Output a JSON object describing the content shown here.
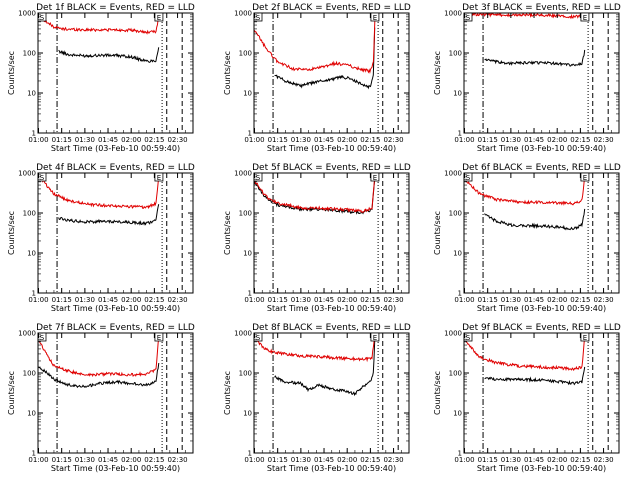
{
  "figure": {
    "background": "#ffffff",
    "series_colors": {
      "Events": "#000000",
      "LLD": "#e00000"
    }
  },
  "chart_data": [
    {
      "type": "line",
      "title": "Det 1f BLACK = Events, RED = LLD",
      "xlabel": "Start Time (03-Feb-10 00:59:40)",
      "ylabel": "Counts/sec",
      "x_tick_labels": [
        "01:00",
        "01:15",
        "01:30",
        "01:45",
        "02:00",
        "02:15",
        "02:30"
      ],
      "y_tick_labels": [
        "1",
        "10",
        "100",
        "1000"
      ],
      "yscale": "log",
      "ylim": [
        1,
        1000
      ],
      "xlim": [
        "00:59:40",
        "02:40:00"
      ],
      "markers": [
        "S",
        "E"
      ],
      "vlines": [
        {
          "time": "01:12",
          "style": "dashdot"
        },
        {
          "time": "02:20",
          "style": "dotted"
        },
        {
          "time": "02:23",
          "style": "dashed"
        },
        {
          "time": "02:33",
          "style": "dashed"
        }
      ],
      "series": [
        {
          "name": "Events",
          "color": "#000000",
          "x": [
            "01:13",
            "01:20",
            "01:30",
            "01:40",
            "01:50",
            "02:00",
            "02:05",
            "02:10",
            "02:16",
            "02:18"
          ],
          "values": [
            110,
            90,
            85,
            88,
            87,
            80,
            70,
            62,
            65,
            150
          ]
        },
        {
          "name": "LLD",
          "color": "#e00000",
          "x": [
            "01:00",
            "01:05",
            "01:10",
            "01:15",
            "01:30",
            "01:45",
            "02:00",
            "02:10",
            "02:16",
            "02:18"
          ],
          "values": [
            900,
            600,
            450,
            400,
            380,
            380,
            370,
            330,
            340,
            900
          ]
        }
      ]
    },
    {
      "type": "line",
      "title": "Det 2f BLACK = Events, RED = LLD",
      "xlabel": "Start Time (03-Feb-10 00:59:40)",
      "ylabel": "Counts/sec",
      "x_tick_labels": [
        "01:00",
        "01:15",
        "01:30",
        "01:45",
        "02:00",
        "02:15",
        "02:30"
      ],
      "y_tick_labels": [
        "1",
        "10",
        "100",
        "1000"
      ],
      "yscale": "log",
      "ylim": [
        1,
        1000
      ],
      "xlim": [
        "00:59:40",
        "02:40:00"
      ],
      "markers": [
        "S",
        "E"
      ],
      "vlines": [
        {
          "time": "01:12",
          "style": "dashdot"
        },
        {
          "time": "02:20",
          "style": "dotted"
        },
        {
          "time": "02:23",
          "style": "dashed"
        },
        {
          "time": "02:33",
          "style": "dashed"
        }
      ],
      "series": [
        {
          "name": "Events",
          "color": "#000000",
          "x": [
            "01:13",
            "01:20",
            "01:30",
            "01:40",
            "01:50",
            "01:55",
            "02:00",
            "02:05",
            "02:10",
            "02:15",
            "02:17",
            "02:18"
          ],
          "values": [
            28,
            20,
            15,
            19,
            22,
            25,
            24,
            20,
            16,
            14,
            30,
            900
          ]
        },
        {
          "name": "LLD",
          "color": "#e00000",
          "x": [
            "01:00",
            "01:03",
            "01:06",
            "01:10",
            "01:15",
            "01:25",
            "01:35",
            "01:45",
            "01:52",
            "02:00",
            "02:08",
            "02:15",
            "02:17",
            "02:18"
          ],
          "values": [
            350,
            250,
            160,
            100,
            60,
            40,
            38,
            45,
            55,
            50,
            40,
            35,
            60,
            1000
          ]
        }
      ]
    },
    {
      "type": "line",
      "title": "Det 3f BLACK = Events, RED = LLD",
      "xlabel": "Start Time (03-Feb-10 00:59:40)",
      "ylabel": "Counts/sec",
      "x_tick_labels": [
        "01:00",
        "01:15",
        "01:30",
        "01:45",
        "02:00",
        "02:15",
        "02:30"
      ],
      "y_tick_labels": [
        "1",
        "10",
        "100",
        "1000"
      ],
      "yscale": "log",
      "ylim": [
        1,
        1000
      ],
      "xlim": [
        "00:59:40",
        "02:40:00"
      ],
      "markers": [
        "S",
        "E"
      ],
      "vlines": [
        {
          "time": "01:12",
          "style": "dashdot"
        },
        {
          "time": "02:20",
          "style": "dotted"
        },
        {
          "time": "02:23",
          "style": "dashed"
        },
        {
          "time": "02:33",
          "style": "dashed"
        }
      ],
      "series": [
        {
          "name": "Events",
          "color": "#000000",
          "x": [
            "01:13",
            "01:20",
            "01:30",
            "01:45",
            "02:00",
            "02:10",
            "02:16",
            "02:18"
          ],
          "values": [
            70,
            60,
            55,
            58,
            55,
            50,
            52,
            120
          ]
        },
        {
          "name": "LLD",
          "color": "#e00000",
          "x": [
            "01:00",
            "01:15",
            "01:30",
            "01:45",
            "02:00",
            "02:10",
            "02:16",
            "02:18"
          ],
          "values": [
            950,
            900,
            880,
            900,
            850,
            800,
            820,
            1000
          ]
        }
      ]
    },
    {
      "type": "line",
      "title": "Det 4f BLACK = Events, RED = LLD",
      "xlabel": "Start Time (03-Feb-10 00:59:40)",
      "ylabel": "Counts/sec",
      "x_tick_labels": [
        "01:00",
        "01:15",
        "01:30",
        "01:45",
        "02:00",
        "02:15",
        "02:30"
      ],
      "y_tick_labels": [
        "1",
        "10",
        "100",
        "1000"
      ],
      "yscale": "log",
      "ylim": [
        1,
        1000
      ],
      "xlim": [
        "00:59:40",
        "02:40:00"
      ],
      "markers": [
        "S",
        "E"
      ],
      "vlines": [
        {
          "time": "01:12",
          "style": "dashdot"
        },
        {
          "time": "02:20",
          "style": "dotted"
        },
        {
          "time": "02:23",
          "style": "dashed"
        },
        {
          "time": "02:33",
          "style": "dashed"
        }
      ],
      "series": [
        {
          "name": "Events",
          "color": "#000000",
          "x": [
            "01:13",
            "01:20",
            "01:30",
            "01:45",
            "02:00",
            "02:10",
            "02:16",
            "02:18"
          ],
          "values": [
            75,
            65,
            60,
            62,
            58,
            55,
            65,
            200
          ]
        },
        {
          "name": "LLD",
          "color": "#e00000",
          "x": [
            "01:00",
            "01:05",
            "01:10",
            "01:20",
            "01:35",
            "01:50",
            "02:00",
            "02:10",
            "02:16",
            "02:18"
          ],
          "values": [
            900,
            500,
            300,
            200,
            160,
            150,
            145,
            140,
            170,
            1000
          ]
        }
      ]
    },
    {
      "type": "line",
      "title": "Det 5f BLACK = Events, RED = LLD",
      "xlabel": "Start Time (03-Feb-10 00:59:40)",
      "ylabel": "Counts/sec",
      "x_tick_labels": [
        "01:00",
        "01:15",
        "01:30",
        "01:45",
        "02:00",
        "02:15",
        "02:30"
      ],
      "y_tick_labels": [
        "1",
        "10",
        "100",
        "1000"
      ],
      "yscale": "log",
      "ylim": [
        1,
        1000
      ],
      "xlim": [
        "00:59:40",
        "02:40:00"
      ],
      "markers": [
        "S",
        "E"
      ],
      "vlines": [
        {
          "time": "01:12",
          "style": "dashdot"
        },
        {
          "time": "02:20",
          "style": "dotted"
        },
        {
          "time": "02:23",
          "style": "dashed"
        },
        {
          "time": "02:33",
          "style": "dashed"
        }
      ],
      "series": [
        {
          "name": "Events",
          "color": "#000000",
          "x": [
            "01:00",
            "01:04",
            "01:08",
            "01:15",
            "01:30",
            "01:45",
            "02:00",
            "02:10",
            "02:16",
            "02:18"
          ],
          "values": [
            600,
            350,
            230,
            160,
            125,
            120,
            110,
            100,
            120,
            800
          ]
        },
        {
          "name": "LLD",
          "color": "#e00000",
          "x": [
            "01:00",
            "01:04",
            "01:08",
            "01:15",
            "01:30",
            "01:45",
            "02:00",
            "02:10",
            "02:16",
            "02:18"
          ],
          "values": [
            650,
            380,
            250,
            175,
            135,
            130,
            120,
            110,
            130,
            1000
          ]
        }
      ]
    },
    {
      "type": "line",
      "title": "Det 6f BLACK = Events, RED = LLD",
      "xlabel": "Start Time (03-Feb-10 00:59:40)",
      "ylabel": "Counts/sec",
      "x_tick_labels": [
        "01:00",
        "01:15",
        "01:30",
        "01:45",
        "02:00",
        "02:15",
        "02:30"
      ],
      "y_tick_labels": [
        "1",
        "10",
        "100",
        "1000"
      ],
      "yscale": "log",
      "ylim": [
        1,
        1000
      ],
      "xlim": [
        "00:59:40",
        "02:40:00"
      ],
      "markers": [
        "S",
        "E"
      ],
      "vlines": [
        {
          "time": "01:12",
          "style": "dashdot"
        },
        {
          "time": "02:20",
          "style": "dotted"
        },
        {
          "time": "02:23",
          "style": "dashed"
        },
        {
          "time": "02:33",
          "style": "dashed"
        }
      ],
      "series": [
        {
          "name": "Events",
          "color": "#000000",
          "x": [
            "01:13",
            "01:20",
            "01:30",
            "01:45",
            "02:00",
            "02:10",
            "02:16",
            "02:18"
          ],
          "values": [
            90,
            65,
            50,
            48,
            45,
            40,
            50,
            130
          ]
        },
        {
          "name": "LLD",
          "color": "#e00000",
          "x": [
            "01:00",
            "01:05",
            "01:10",
            "01:20",
            "01:35",
            "01:50",
            "02:00",
            "02:10",
            "02:16",
            "02:18"
          ],
          "values": [
            700,
            450,
            300,
            220,
            190,
            185,
            180,
            170,
            200,
            1000
          ]
        }
      ]
    },
    {
      "type": "line",
      "title": "Det 7f BLACK = Events, RED = LLD",
      "xlabel": "Start Time (03-Feb-10 00:59:40)",
      "ylabel": "Counts/sec",
      "x_tick_labels": [
        "01:00",
        "01:15",
        "01:30",
        "01:45",
        "02:00",
        "02:15",
        "02:30"
      ],
      "y_tick_labels": [
        "1",
        "10",
        "100",
        "1000"
      ],
      "yscale": "log",
      "ylim": [
        1,
        1000
      ],
      "xlim": [
        "00:59:40",
        "02:40:00"
      ],
      "markers": [
        "S",
        "E"
      ],
      "vlines": [
        {
          "time": "01:12",
          "style": "dashdot"
        },
        {
          "time": "02:20",
          "style": "dotted"
        },
        {
          "time": "02:23",
          "style": "dashed"
        },
        {
          "time": "02:33",
          "style": "dashed"
        }
      ],
      "series": [
        {
          "name": "Events",
          "color": "#000000",
          "x": [
            "01:00",
            "01:10",
            "01:20",
            "01:30",
            "01:40",
            "01:50",
            "02:00",
            "02:10",
            "02:16",
            "02:18"
          ],
          "values": [
            150,
            70,
            50,
            45,
            55,
            60,
            55,
            50,
            60,
            200
          ]
        },
        {
          "name": "LLD",
          "color": "#e00000",
          "x": [
            "01:00",
            "01:05",
            "01:10",
            "01:20",
            "01:30",
            "01:45",
            "02:00",
            "02:10",
            "02:16",
            "02:18"
          ],
          "values": [
            700,
            300,
            150,
            110,
            90,
            95,
            90,
            95,
            120,
            1000
          ]
        }
      ]
    },
    {
      "type": "line",
      "title": "Det 8f BLACK = Events, RED = LLD",
      "xlabel": "Start Time (03-Feb-10 00:59:40)",
      "ylabel": "Counts/sec",
      "x_tick_labels": [
        "01:00",
        "01:15",
        "01:30",
        "01:45",
        "02:00",
        "02:15",
        "02:30"
      ],
      "y_tick_labels": [
        "1",
        "10",
        "100",
        "1000"
      ],
      "yscale": "log",
      "ylim": [
        1,
        1000
      ],
      "xlim": [
        "00:59:40",
        "02:40:00"
      ],
      "markers": [
        "S",
        "E"
      ],
      "vlines": [
        {
          "time": "01:12",
          "style": "dashdot"
        },
        {
          "time": "02:20",
          "style": "dotted"
        },
        {
          "time": "02:23",
          "style": "dashed"
        },
        {
          "time": "02:33",
          "style": "dashed"
        }
      ],
      "series": [
        {
          "name": "Events",
          "color": "#000000",
          "x": [
            "01:13",
            "01:20",
            "01:30",
            "01:35",
            "01:42",
            "01:50",
            "02:00",
            "02:05",
            "02:10",
            "02:15",
            "02:17",
            "02:18"
          ],
          "values": [
            80,
            60,
            55,
            38,
            50,
            40,
            35,
            30,
            45,
            60,
            100,
            1000
          ]
        },
        {
          "name": "LLD",
          "color": "#e00000",
          "x": [
            "01:00",
            "01:05",
            "01:10",
            "01:20",
            "01:30",
            "01:45",
            "02:00",
            "02:10",
            "02:16",
            "02:18"
          ],
          "values": [
            800,
            450,
            350,
            300,
            270,
            250,
            230,
            220,
            230,
            1000
          ]
        }
      ]
    },
    {
      "type": "line",
      "title": "Det 9f BLACK = Events, RED = LLD",
      "xlabel": "Start Time (03-Feb-10 00:59:40)",
      "ylabel": "Counts/sec",
      "x_tick_labels": [
        "01:00",
        "01:15",
        "01:30",
        "01:45",
        "02:00",
        "02:15",
        "02:30"
      ],
      "y_tick_labels": [
        "1",
        "10",
        "100",
        "1000"
      ],
      "yscale": "log",
      "ylim": [
        1,
        1000
      ],
      "xlim": [
        "00:59:40",
        "02:40:00"
      ],
      "markers": [
        "S",
        "E"
      ],
      "vlines": [
        {
          "time": "01:12",
          "style": "dashdot"
        },
        {
          "time": "02:20",
          "style": "dotted"
        },
        {
          "time": "02:23",
          "style": "dashed"
        },
        {
          "time": "02:33",
          "style": "dashed"
        }
      ],
      "series": [
        {
          "name": "Events",
          "color": "#000000",
          "x": [
            "01:13",
            "01:20",
            "01:30",
            "01:45",
            "02:00",
            "02:10",
            "02:16",
            "02:18"
          ],
          "values": [
            75,
            70,
            70,
            68,
            62,
            55,
            60,
            150
          ]
        },
        {
          "name": "LLD",
          "color": "#e00000",
          "x": [
            "01:00",
            "01:05",
            "01:10",
            "01:20",
            "01:35",
            "01:50",
            "02:00",
            "02:10",
            "02:16",
            "02:18"
          ],
          "values": [
            700,
            400,
            250,
            180,
            150,
            140,
            135,
            125,
            140,
            1000
          ]
        }
      ]
    }
  ]
}
